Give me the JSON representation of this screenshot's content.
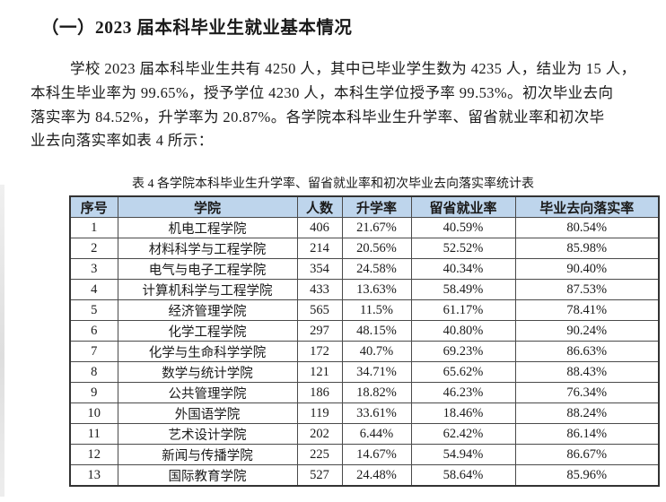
{
  "doc": {
    "heading": "（一）2023 届本科毕业生就业基本情况",
    "paragraph_lines": [
      "学校 2023 届本科毕业生共有 4250 人，其中已毕业学生数为 4235 人，结业为 15 人，",
      "本科生毕业率为 99.65%，授予学位 4230 人，本科生学位授予率 99.53%。初次毕业去向",
      "落实率为 84.52%，升学率为 20.87%。各学院本科毕业生升学率、留省就业率和初次毕",
      "业去向落实率如表 4 所示："
    ],
    "table_caption": "表 4 各学院本科毕业生升学率、留省就业率和初次毕业去向落实率统计表"
  },
  "table": {
    "headers": [
      "序号",
      "学院",
      "人数",
      "升学率",
      "留省就业率",
      "毕业去向落实率"
    ],
    "rows": [
      [
        "1",
        "机电工程学院",
        "406",
        "21.67%",
        "40.59%",
        "80.54%"
      ],
      [
        "2",
        "材料科学与工程学院",
        "214",
        "20.56%",
        "52.52%",
        "85.98%"
      ],
      [
        "3",
        "电气与电子工程学院",
        "354",
        "24.58%",
        "40.34%",
        "90.40%"
      ],
      [
        "4",
        "计算机科学与工程学院",
        "433",
        "13.63%",
        "58.49%",
        "87.53%"
      ],
      [
        "5",
        "经济管理学院",
        "565",
        "11.5%",
        "61.17%",
        "78.41%"
      ],
      [
        "6",
        "化学工程学院",
        "297",
        "48.15%",
        "40.80%",
        "90.24%"
      ],
      [
        "7",
        "化学与生命科学学院",
        "172",
        "40.7%",
        "69.23%",
        "86.63%"
      ],
      [
        "8",
        "数学与统计学院",
        "121",
        "34.71%",
        "65.62%",
        "88.43%"
      ],
      [
        "9",
        "公共管理学院",
        "186",
        "18.82%",
        "46.23%",
        "76.34%"
      ],
      [
        "10",
        "外国语学院",
        "119",
        "33.61%",
        "18.46%",
        "88.24%"
      ],
      [
        "11",
        "艺术设计学院",
        "202",
        "6.44%",
        "62.42%",
        "86.14%"
      ],
      [
        "12",
        "新闻与传播学院",
        "225",
        "14.67%",
        "54.94%",
        "86.67%"
      ],
      [
        "13",
        "国际教育学院",
        "527",
        "24.48%",
        "58.64%",
        "85.96%"
      ]
    ]
  },
  "colors": {
    "header_bg": "#bed5ec",
    "border_outer": "#333333",
    "border_inner": "#4a4a4a",
    "text": "#1a1a1a"
  }
}
